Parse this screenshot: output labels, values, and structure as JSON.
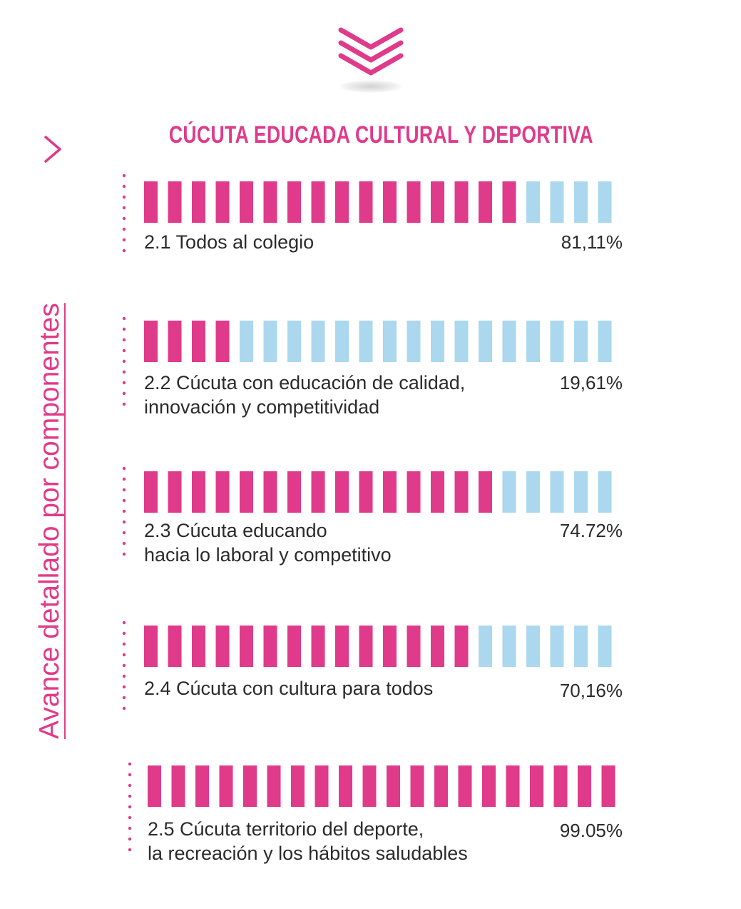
{
  "colors": {
    "accent": "#e03a8a",
    "filled": "#e03a8a",
    "empty": "#abd8ee",
    "text": "#2b2b2b"
  },
  "icons": {
    "top": "triple-chevron-down-icon",
    "side": "chevron-right-icon"
  },
  "side_label": "Avance detallado por  componentes",
  "chart_data": {
    "type": "bar",
    "subtype": "segmented-progress",
    "title": "CÚCUTA EDUCADA CULTURAL Y DEPORTIVA",
    "segments_per_bar": 20,
    "categories": [
      [
        "2.1 Todos al colegio"
      ],
      [
        "2.2 Cúcuta con educación de calidad,",
        "innovación y competitividad"
      ],
      [
        "2.3 Cúcuta educando",
        "hacia lo laboral y competitivo"
      ],
      [
        "2.4 Cúcuta con cultura para todos"
      ],
      [
        "2.5 Cúcuta territorio del deporte,",
        "la recreación y los hábitos saludables"
      ]
    ],
    "value_labels": [
      "81,11%",
      "19,61%",
      "74.72%",
      "70,16%",
      "99.05%"
    ],
    "values": [
      81.11,
      19.61,
      74.72,
      70.16,
      99.05
    ],
    "ylim": [
      0,
      100
    ]
  }
}
